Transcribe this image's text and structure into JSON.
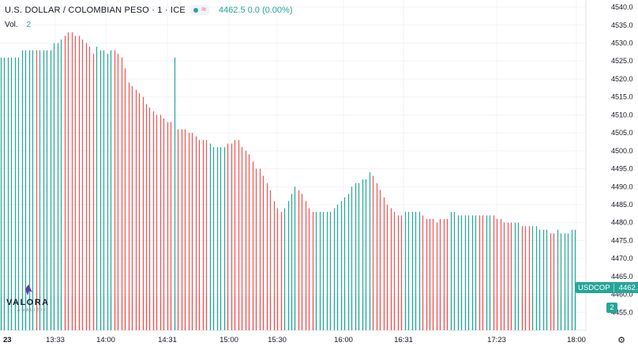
{
  "legend": {
    "title": "U.S. DOLLAR / COLOMBIAN PESO · 1 · ICE",
    "quote": "4462.5  0.0 (0.00%)"
  },
  "volume": {
    "label": "Vol.",
    "value": "2"
  },
  "price_tag": {
    "symbol": "USDCOP",
    "value": "4462.5"
  },
  "volume_tag": "2",
  "logo": {
    "name": "VALORA",
    "tagline": "ANALITIK"
  },
  "colors": {
    "up": "#26a69a",
    "down": "#ef5350",
    "up_vol": "#b2dfdb",
    "down_vol": "#f8c0c0",
    "grid": "#f0f3fa"
  },
  "chart_data": {
    "type": "bar",
    "description_of_series": "1-minute USD/COP high-low bars with volume histogram",
    "x_axis": {
      "first_label": "23",
      "ticks": [
        "13:33",
        "14:00",
        "14:31",
        "15:00",
        "15:30",
        "16:00",
        "16:31",
        "17:23",
        "18:00"
      ]
    },
    "y_axis": {
      "range": [
        4450,
        4542
      ],
      "ticks": [
        4455.0,
        4460.0,
        4465.0,
        4470.0,
        4475.0,
        4480.0,
        4485.0,
        4490.0,
        4495.0,
        4500.0,
        4505.0,
        4510.0,
        4515.0,
        4520.0,
        4525.0,
        4530.0,
        4535.0,
        4540.0
      ]
    },
    "volume_range": [
      0,
      2
    ],
    "series": [
      {
        "name": "USDCOP",
        "points": [
          [
            4526,
            "u"
          ],
          [
            4526,
            "u"
          ],
          [
            4526,
            "u"
          ],
          [
            4526,
            "u"
          ],
          [
            4526,
            "u"
          ],
          [
            4526,
            "u"
          ],
          [
            4528,
            "u"
          ],
          [
            4528,
            "u"
          ],
          [
            4528,
            "u"
          ],
          [
            4528,
            "u"
          ],
          [
            4528,
            "d"
          ],
          [
            4528,
            "u"
          ],
          [
            4528,
            "u"
          ],
          [
            4528,
            "u"
          ],
          [
            4528,
            "u"
          ],
          [
            4530,
            "u"
          ],
          [
            4530,
            "u"
          ],
          [
            4531,
            "u"
          ],
          [
            4532,
            "d"
          ],
          [
            4533,
            "d"
          ],
          [
            4533,
            "d"
          ],
          [
            4532,
            "d"
          ],
          [
            4532,
            "d"
          ],
          [
            4531,
            "d"
          ],
          [
            4530,
            "d"
          ],
          [
            4529,
            "d"
          ],
          [
            4527,
            "d"
          ],
          [
            4529,
            "u"
          ],
          [
            4528,
            "u"
          ],
          [
            4528,
            "u"
          ],
          [
            4527,
            "u"
          ],
          [
            4528,
            "u"
          ],
          [
            4528,
            "d"
          ],
          [
            4527,
            "d"
          ],
          [
            4526,
            "d"
          ],
          [
            4523,
            "d"
          ],
          [
            4519,
            "d"
          ],
          [
            4518,
            "d"
          ],
          [
            4517,
            "d"
          ],
          [
            4516,
            "d"
          ],
          [
            4515,
            "d"
          ],
          [
            4513,
            "d"
          ],
          [
            4512,
            "d"
          ],
          [
            4511,
            "d"
          ],
          [
            4510,
            "d"
          ],
          [
            4510,
            "d"
          ],
          [
            4509,
            "d"
          ],
          [
            4508,
            "d"
          ],
          [
            4508,
            "d"
          ],
          [
            4526,
            "u"
          ],
          [
            4506,
            "d"
          ],
          [
            4506,
            "d"
          ],
          [
            4506,
            "d"
          ],
          [
            4505,
            "d"
          ],
          [
            4505,
            "d"
          ],
          [
            4504,
            "d"
          ],
          [
            4503,
            "d"
          ],
          [
            4503,
            "d"
          ],
          [
            4503,
            "d"
          ],
          [
            4502,
            "u"
          ],
          [
            4501,
            "u"
          ],
          [
            4501,
            "u"
          ],
          [
            4501,
            "u"
          ],
          [
            4501,
            "u"
          ],
          [
            4502,
            "d"
          ],
          [
            4502,
            "d"
          ],
          [
            4503,
            "d"
          ],
          [
            4503,
            "d"
          ],
          [
            4501,
            "d"
          ],
          [
            4500,
            "d"
          ],
          [
            4499,
            "d"
          ],
          [
            4497,
            "d"
          ],
          [
            4495,
            "d"
          ],
          [
            4495,
            "d"
          ],
          [
            4493,
            "d"
          ],
          [
            4491,
            "d"
          ],
          [
            4489,
            "d"
          ],
          [
            4486,
            "d"
          ],
          [
            4484,
            "d"
          ],
          [
            4483,
            "d"
          ],
          [
            4484,
            "u"
          ],
          [
            4486,
            "u"
          ],
          [
            4488,
            "u"
          ],
          [
            4490,
            "u"
          ],
          [
            4489,
            "d"
          ],
          [
            4488,
            "d"
          ],
          [
            4486,
            "d"
          ],
          [
            4484,
            "d"
          ],
          [
            4483,
            "d"
          ],
          [
            4483,
            "u"
          ],
          [
            4483,
            "u"
          ],
          [
            4483,
            "u"
          ],
          [
            4483,
            "u"
          ],
          [
            4483,
            "u"
          ],
          [
            4484,
            "u"
          ],
          [
            4485,
            "u"
          ],
          [
            4486,
            "u"
          ],
          [
            4487,
            "u"
          ],
          [
            4488,
            "u"
          ],
          [
            4490,
            "u"
          ],
          [
            4491,
            "u"
          ],
          [
            4491,
            "u"
          ],
          [
            4492,
            "u"
          ],
          [
            4492,
            "u"
          ],
          [
            4494,
            "u"
          ],
          [
            4493,
            "d"
          ],
          [
            4491,
            "d"
          ],
          [
            4489,
            "d"
          ],
          [
            4487,
            "d"
          ],
          [
            4485,
            "d"
          ],
          [
            4484,
            "d"
          ],
          [
            4483,
            "d"
          ],
          [
            4482,
            "d"
          ],
          [
            4482,
            "d"
          ],
          [
            4483,
            "u"
          ],
          [
            4483,
            "u"
          ],
          [
            4483,
            "u"
          ],
          [
            4483,
            "u"
          ],
          [
            4483,
            "u"
          ],
          [
            4482,
            "d"
          ],
          [
            4481,
            "d"
          ],
          [
            4481,
            "d"
          ],
          [
            4481,
            "d"
          ],
          [
            4480,
            "d"
          ],
          [
            4481,
            "d"
          ],
          [
            4481,
            "d"
          ],
          [
            4481,
            "d"
          ],
          [
            4483,
            "u"
          ],
          [
            4483,
            "u"
          ],
          [
            4482,
            "u"
          ],
          [
            4482,
            "u"
          ],
          [
            4482,
            "u"
          ],
          [
            4482,
            "u"
          ],
          [
            4482,
            "u"
          ],
          [
            4482,
            "u"
          ],
          [
            4482,
            "d"
          ],
          [
            4482,
            "d"
          ],
          [
            4482,
            "u"
          ],
          [
            4482,
            "u"
          ],
          [
            4482,
            "d"
          ],
          [
            4481,
            "d"
          ],
          [
            4481,
            "d"
          ],
          [
            4480,
            "d"
          ],
          [
            4480,
            "d"
          ],
          [
            4480,
            "d"
          ],
          [
            4480,
            "u"
          ],
          [
            4480,
            "u"
          ],
          [
            4479,
            "d"
          ],
          [
            4479,
            "d"
          ],
          [
            4479,
            "d"
          ],
          [
            4479,
            "u"
          ],
          [
            4479,
            "u"
          ],
          [
            4478,
            "u"
          ],
          [
            4478,
            "u"
          ],
          [
            4478,
            "u"
          ],
          [
            4477,
            "d"
          ],
          [
            4477,
            "d"
          ],
          [
            4478,
            "u"
          ],
          [
            4477,
            "u"
          ],
          [
            4477,
            "u"
          ],
          [
            4477,
            "u"
          ],
          [
            4478,
            "u"
          ],
          [
            4478,
            "u"
          ]
        ]
      }
    ]
  }
}
